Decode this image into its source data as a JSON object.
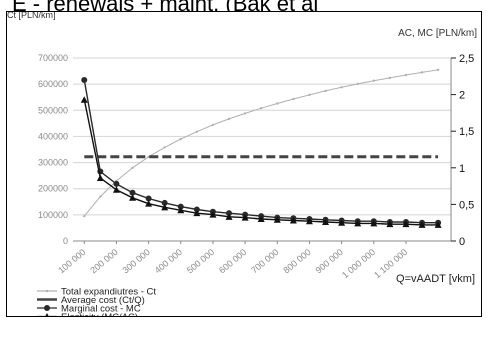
{
  "page": {
    "banner_text": "E - renewals + maint. (Bak et al"
  },
  "chart_data": {
    "type": "line",
    "left_axis_label": "Ct [PLN/km]",
    "right_axis_label": "AC, MC [PLN/km]",
    "xlabel": "Q=vAADT [vkm]",
    "x_ticks": [
      100000,
      200000,
      300000,
      400000,
      500000,
      600000,
      700000,
      800000,
      900000,
      1000000,
      1100000
    ],
    "x_tick_labels": [
      "100 000",
      "200 000",
      "300 000",
      "400 000",
      "500 000",
      "600 000",
      "700 000",
      "800 000",
      "900 000",
      "1 000 000",
      "1 100 000"
    ],
    "x_range": [
      65000,
      1240000
    ],
    "left_ticks": [
      0,
      100000,
      200000,
      300000,
      400000,
      500000,
      600000,
      700000
    ],
    "left_tick_labels": [
      "0",
      "100000",
      "200000",
      "300000",
      "400000",
      "500000",
      "600000",
      "700000"
    ],
    "ylim_left": [
      0,
      700000
    ],
    "right_ticks": [
      0,
      0.5,
      1,
      1.5,
      2,
      2.5
    ],
    "right_tick_labels": [
      "0",
      "0,5",
      "1",
      "1,5",
      "2",
      "2,5"
    ],
    "ylim_right": [
      0,
      2.5
    ],
    "grid": "horizontal",
    "legend_position": "bottom-left",
    "x": [
      100000,
      150000,
      200000,
      250000,
      300000,
      350000,
      400000,
      450000,
      500000,
      550000,
      600000,
      650000,
      700000,
      750000,
      800000,
      850000,
      900000,
      950000,
      1000000,
      1050000,
      1100000,
      1150000,
      1200000
    ],
    "series": [
      {
        "name": "Total expandiutres - Ct",
        "axis": "left",
        "marker": "dot",
        "color": "#b0b0b0",
        "values": [
          95000,
          170000,
          230000,
          280000,
          322000,
          358000,
          390000,
          418000,
          444000,
          467000,
          488000,
          508000,
          526000,
          543000,
          559000,
          574000,
          588000,
          601000,
          613000,
          624000,
          635000,
          645000,
          655000
        ]
      },
      {
        "name": "Average cost (Ct/Q)",
        "axis": "right",
        "marker": "none",
        "color": "#444444",
        "dashed": true,
        "values": [
          1.15,
          1.15,
          1.15,
          1.15,
          1.15,
          1.15,
          1.15,
          1.15,
          1.15,
          1.15,
          1.15,
          1.15,
          1.15,
          1.15,
          1.15,
          1.15,
          1.15,
          1.15,
          1.15,
          1.15,
          1.15,
          1.15,
          1.15
        ]
      },
      {
        "name": "Marginal cost - MC",
        "axis": "right",
        "marker": "circle",
        "color": "#2a2a2a",
        "values": [
          2.2,
          0.95,
          0.78,
          0.66,
          0.58,
          0.52,
          0.47,
          0.43,
          0.4,
          0.38,
          0.36,
          0.34,
          0.32,
          0.31,
          0.3,
          0.29,
          0.28,
          0.27,
          0.27,
          0.26,
          0.26,
          0.25,
          0.25
        ]
      },
      {
        "name": "Elasticity (MC/AC)",
        "axis": "right",
        "marker": "triangle",
        "color": "#111111",
        "values": [
          1.93,
          0.86,
          0.7,
          0.59,
          0.51,
          0.46,
          0.42,
          0.38,
          0.36,
          0.33,
          0.32,
          0.3,
          0.29,
          0.28,
          0.27,
          0.26,
          0.25,
          0.24,
          0.24,
          0.23,
          0.23,
          0.22,
          0.22
        ]
      }
    ]
  }
}
